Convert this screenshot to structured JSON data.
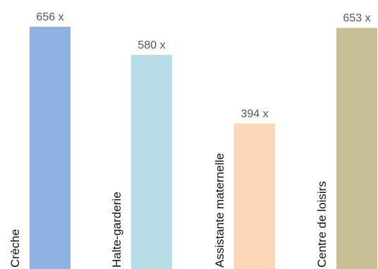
{
  "chart_data": {
    "type": "bar",
    "title": "",
    "xlabel": "",
    "ylabel": "",
    "ylim": [
      0,
      700
    ],
    "grid": false,
    "value_suffix": " x",
    "categories": [
      "Crèche",
      "Halte-garderie",
      "Assistante maternelle",
      "Centre de loisirs"
    ],
    "values": [
      656,
      580,
      394,
      653
    ],
    "colors": [
      "#8eb3e2",
      "#b7dde6",
      "#fbd6b6",
      "#c8bf96"
    ]
  }
}
